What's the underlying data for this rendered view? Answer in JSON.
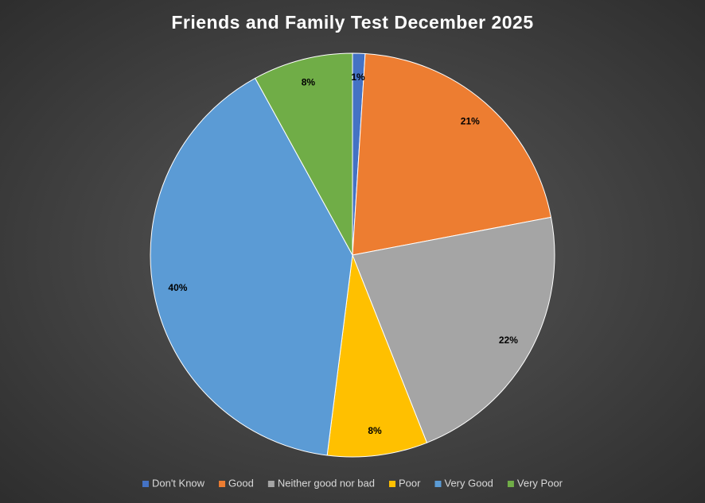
{
  "chart_data": {
    "type": "pie",
    "title": "Friends and Family Test December 2025",
    "categories": [
      "Don't Know",
      "Good",
      "Neither good nor bad",
      "Poor",
      "Very Good",
      "Very Poor"
    ],
    "values": [
      1,
      21,
      22,
      8,
      40,
      8
    ],
    "value_labels": [
      "1%",
      "21%",
      "22%",
      "8%",
      "40%",
      "8%"
    ],
    "colors": [
      "#4472c4",
      "#ed7d31",
      "#a5a5a5",
      "#ffc000",
      "#5b9bd5",
      "#70ad47"
    ],
    "legend": "bottom"
  }
}
